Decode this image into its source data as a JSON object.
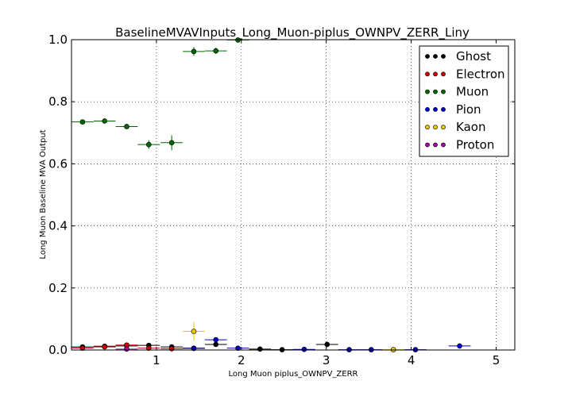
{
  "chart_data": {
    "type": "scatter",
    "title": "BaselineMVAVInputs_Long_Muon-piplus_OWNPV_ZERR_Liny",
    "xlabel": "Long Muon piplus_OWNPV_ZERR",
    "ylabel": "Long Muon Baseline MVA Output",
    "xlim": [
      0.0,
      5.22
    ],
    "ylim": [
      0.0,
      1.0
    ],
    "xticks": [
      "1",
      "2",
      "3",
      "4",
      "5"
    ],
    "xtick_values": [
      1,
      2,
      3,
      4,
      5
    ],
    "yticks": [
      "0.0",
      "0.2",
      "0.4",
      "0.6",
      "0.8",
      "1.0"
    ],
    "ytick_values": [
      0.0,
      0.2,
      0.4,
      0.6,
      0.8,
      1.0
    ],
    "grid": true,
    "legend_position": "top-right",
    "series": [
      {
        "name": "Ghost",
        "color": "#000000",
        "points": [
          {
            "x": 0.13,
            "y": 0.01,
            "xerr": 0.13,
            "yerr": 0.003
          },
          {
            "x": 0.39,
            "y": 0.012,
            "xerr": 0.13,
            "yerr": 0.003
          },
          {
            "x": 0.65,
            "y": 0.013,
            "xerr": 0.13,
            "yerr": 0.003
          },
          {
            "x": 0.91,
            "y": 0.015,
            "xerr": 0.13,
            "yerr": 0.004
          },
          {
            "x": 1.18,
            "y": 0.01,
            "xerr": 0.13,
            "yerr": 0.004
          },
          {
            "x": 1.44,
            "y": 0.006,
            "xerr": 0.13,
            "yerr": 0.004
          },
          {
            "x": 1.7,
            "y": 0.018,
            "xerr": 0.13,
            "yerr": 0.006
          },
          {
            "x": 2.22,
            "y": 0.003,
            "xerr": 0.13,
            "yerr": 0.003
          },
          {
            "x": 2.48,
            "y": 0.001,
            "xerr": 0.13,
            "yerr": 0.002
          },
          {
            "x": 3.01,
            "y": 0.018,
            "xerr": 0.13,
            "yerr": 0.008
          }
        ]
      },
      {
        "name": "Electron",
        "color": "#cc0000",
        "points": [
          {
            "x": 0.13,
            "y": 0.006,
            "xerr": 0.13,
            "yerr": 0.002
          },
          {
            "x": 0.39,
            "y": 0.01,
            "xerr": 0.13,
            "yerr": 0.002
          },
          {
            "x": 0.65,
            "y": 0.016,
            "xerr": 0.13,
            "yerr": 0.003
          },
          {
            "x": 0.91,
            "y": 0.006,
            "xerr": 0.13,
            "yerr": 0.003
          },
          {
            "x": 1.18,
            "y": 0.004,
            "xerr": 0.13,
            "yerr": 0.003
          }
        ]
      },
      {
        "name": "Muon",
        "color": "#006600",
        "points": [
          {
            "x": 0.13,
            "y": 0.735,
            "xerr": 0.13,
            "yerr": 0.004
          },
          {
            "x": 0.39,
            "y": 0.738,
            "xerr": 0.13,
            "yerr": 0.004
          },
          {
            "x": 0.65,
            "y": 0.72,
            "xerr": 0.13,
            "yerr": 0.006
          },
          {
            "x": 0.91,
            "y": 0.662,
            "xerr": 0.13,
            "yerr": 0.014
          },
          {
            "x": 1.18,
            "y": 0.668,
            "xerr": 0.13,
            "yerr": 0.024
          },
          {
            "x": 1.44,
            "y": 0.962,
            "xerr": 0.13,
            "yerr": 0.014
          },
          {
            "x": 1.7,
            "y": 0.964,
            "xerr": 0.13,
            "yerr": 0.01
          },
          {
            "x": 1.96,
            "y": 0.999,
            "xerr": 0.13,
            "yerr": 0.004
          }
        ]
      },
      {
        "name": "Pion",
        "color": "#0000cc",
        "points": [
          {
            "x": 1.44,
            "y": 0.005,
            "xerr": 0.13,
            "yerr": 0.003
          },
          {
            "x": 1.7,
            "y": 0.033,
            "xerr": 0.13,
            "yerr": 0.006
          },
          {
            "x": 1.96,
            "y": 0.006,
            "xerr": 0.13,
            "yerr": 0.004
          },
          {
            "x": 2.74,
            "y": 0.002,
            "xerr": 0.13,
            "yerr": 0.002
          },
          {
            "x": 3.27,
            "y": 0.001,
            "xerr": 0.13,
            "yerr": 0.002
          },
          {
            "x": 3.53,
            "y": 0.001,
            "xerr": 0.13,
            "yerr": 0.002
          },
          {
            "x": 4.05,
            "y": 0.001,
            "xerr": 0.13,
            "yerr": 0.002
          },
          {
            "x": 4.57,
            "y": 0.013,
            "xerr": 0.13,
            "yerr": 0.005
          }
        ]
      },
      {
        "name": "Kaon",
        "color": "#e6c800",
        "points": [
          {
            "x": 1.44,
            "y": 0.06,
            "xerr": 0.13,
            "yerr": 0.03
          },
          {
            "x": 3.79,
            "y": 0.001,
            "xerr": 0.13,
            "yerr": 0.002
          }
        ]
      },
      {
        "name": "Proton",
        "color": "#aa00aa",
        "points": [
          {
            "x": 0.65,
            "y": 0.003,
            "xerr": 0.13,
            "yerr": 0.002
          }
        ]
      }
    ]
  }
}
